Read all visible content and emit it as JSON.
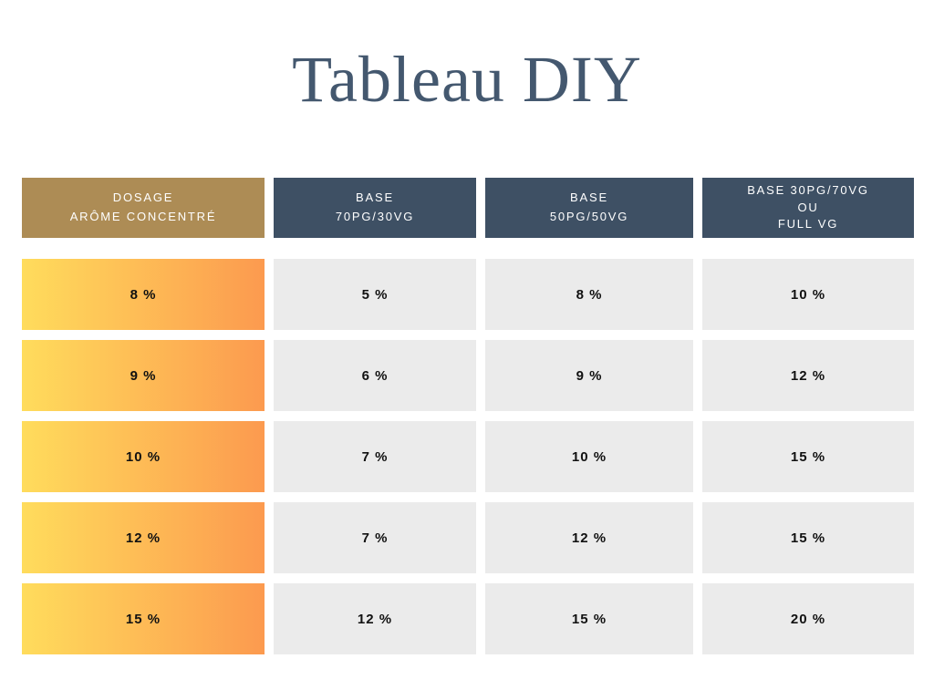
{
  "page": {
    "title": "Tableau DIY",
    "background": "#ffffff"
  },
  "colors": {
    "title_text": "#44586f",
    "gold_header_bg": "#ad8c55",
    "dark_header_bg": "#3e5064",
    "header_text": "#ffffff",
    "gray_cell_bg": "#ebebeb",
    "cell_text": "#111111",
    "dosage_gradient_left": "#ffdc5c",
    "dosage_gradient_right": "#fc9a4f"
  },
  "table": {
    "headers": [
      {
        "lines": [
          "DOSAGE",
          "ARÔME CONCENTRÉ"
        ]
      },
      {
        "lines": [
          "BASE",
          "70PG/30VG"
        ]
      },
      {
        "lines": [
          "BASE",
          "50PG/50VG"
        ]
      },
      {
        "lines": [
          "BASE 30PG/70VG",
          "OU",
          "FULL VG"
        ]
      }
    ],
    "rows": [
      {
        "dosage": "8 %",
        "base70": "5 %",
        "base50": "8 %",
        "base30": "10 %"
      },
      {
        "dosage": "9 %",
        "base70": "6 %",
        "base50": "9 %",
        "base30": "12 %"
      },
      {
        "dosage": "10 %",
        "base70": "7 %",
        "base50": "10 %",
        "base30": "15 %"
      },
      {
        "dosage": "12 %",
        "base70": "7 %",
        "base50": "12 %",
        "base30": "15 %"
      },
      {
        "dosage": "15 %",
        "base70": "12 %",
        "base50": "15 %",
        "base30": "20 %"
      }
    ]
  },
  "chart_data": {
    "type": "table",
    "title": "Tableau DIY",
    "columns": [
      "DOSAGE ARÔME CONCENTRÉ",
      "BASE 70PG/30VG",
      "BASE 50PG/50VG",
      "BASE 30PG/70VG OU FULL VG"
    ],
    "rows": [
      [
        "8 %",
        "5 %",
        "8 %",
        "10 %"
      ],
      [
        "9 %",
        "6 %",
        "9 %",
        "12 %"
      ],
      [
        "10 %",
        "7 %",
        "10 %",
        "15 %"
      ],
      [
        "12 %",
        "7 %",
        "12 %",
        "15 %"
      ],
      [
        "15 %",
        "12 %",
        "15 %",
        "20 %"
      ]
    ]
  }
}
